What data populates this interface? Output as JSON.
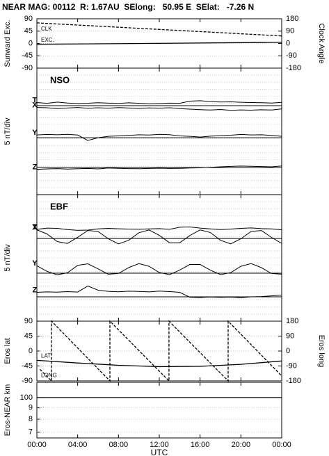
{
  "title": "NEAR MAG: 00112  R: 1.67AU  SElong:   50.95 E  SElat:   -7.26 N",
  "chart_data": [
    {
      "type": "line",
      "ylabel": "Sunward Exc.",
      "y2label": "Clock Angle",
      "xlim": [
        0,
        24
      ],
      "ylim": [
        -90,
        90
      ],
      "yticks": [
        90,
        45,
        0,
        -45,
        -90
      ],
      "y2lim": [
        -180,
        180
      ],
      "y2ticks": [
        180,
        90,
        0,
        -90,
        -180
      ],
      "grid": true,
      "series": [
        {
          "name": "CLK",
          "color": "#000000",
          "style": "dashed",
          "axis": "y2",
          "x": [
            0,
            24
          ],
          "values": [
            150,
            55
          ]
        },
        {
          "name": "EXC.",
          "color": "#000000",
          "style": "solid",
          "x": [
            0,
            24
          ],
          "values": [
            -3,
            4
          ]
        }
      ]
    },
    {
      "type": "line",
      "label": "NSO",
      "ylabel": "5 nT/div",
      "xlim": [
        0,
        24
      ],
      "ylim": [
        0,
        90
      ],
      "grid_step": 5,
      "x": [
        0,
        1,
        2,
        3,
        4,
        5,
        6,
        7,
        8,
        9,
        10,
        11,
        12,
        13,
        14,
        15,
        16,
        17,
        18,
        19,
        20,
        21,
        22,
        23,
        24
      ],
      "reference_lines": [
        63.3,
        40.5,
        19.3
      ],
      "series": [
        {
          "name": "T",
          "color": "#000000",
          "values": [
            65.5,
            65.0,
            65.8,
            65.2,
            64.8,
            65.0,
            65.4,
            65.1,
            64.9,
            65.3,
            65.0,
            64.6,
            64.8,
            65.1,
            65.0,
            66.5,
            66.8,
            66.2,
            65.9,
            66.0,
            65.7,
            65.5,
            65.4,
            65.2,
            65.6
          ]
        },
        {
          "name": "X",
          "color": "#000000",
          "values": [
            62.0,
            61.8,
            61.2,
            61.6,
            62.0,
            61.4,
            61.8,
            61.5,
            61.9,
            61.6,
            61.3,
            61.7,
            61.5,
            61.8,
            61.2,
            60.8,
            60.5,
            60.2,
            60.6,
            60.0,
            60.3,
            60.1,
            60.4,
            60.2,
            61.0
          ]
        },
        {
          "name": "Y",
          "color": "#000000",
          "values": [
            42.5,
            42.8,
            42.6,
            42.9,
            42.4,
            38.5,
            40.5,
            41.5,
            41.8,
            42.2,
            42.6,
            42.4,
            42.9,
            42.7,
            41.8,
            41.5,
            41.0,
            41.6,
            42.0,
            42.3,
            42.8,
            42.5,
            42.6,
            42.2,
            41.5
          ]
        },
        {
          "name": "Z",
          "color": "#000000",
          "values": [
            18.0,
            18.3,
            18.5,
            18.2,
            18.4,
            18.6,
            18.3,
            18.9,
            18.7,
            18.5,
            18.4,
            18.6,
            18.8,
            18.6,
            18.7,
            18.9,
            19.1,
            19.4,
            19.8,
            20.1,
            20.3,
            20.2,
            20.0,
            19.8,
            20.4
          ]
        }
      ]
    },
    {
      "type": "line",
      "label": "EBF",
      "ylabel": "5 nT/div",
      "xlim": [
        0,
        24
      ],
      "ylim": [
        0,
        90
      ],
      "grid_step": 5,
      "x": [
        0,
        1,
        2,
        3,
        4,
        5,
        6,
        7,
        8,
        9,
        10,
        11,
        12,
        13,
        14,
        15,
        16,
        17,
        18,
        19,
        20,
        21,
        22,
        23,
        24
      ],
      "reference_lines": [
        58.8,
        34.1,
        17.3
      ],
      "series": [
        {
          "name": "T",
          "color": "#000000",
          "values": [
            65.3,
            66.2,
            66.0,
            65.2,
            64.6,
            64.8,
            65.6,
            66.0,
            65.7,
            65.5,
            65.4,
            65.6,
            65.8,
            65.3,
            66.8,
            67.0,
            66.2,
            65.6,
            65.2,
            65.5,
            66.0,
            66.3,
            65.8,
            65.6,
            65.0
          ]
        },
        {
          "name": "X",
          "color": "#000000",
          "values": [
            65.0,
            62.0,
            56.6,
            55.3,
            59.7,
            64.5,
            63.8,
            58.6,
            55.0,
            57.5,
            62.9,
            64.9,
            61.0,
            55.8,
            55.8,
            60.9,
            64.9,
            63.1,
            57.5,
            55.0,
            58.6,
            63.8,
            64.5,
            59.6,
            55.3
          ]
        },
        {
          "name": "Y",
          "color": "#000000",
          "values": [
            39.4,
            35.4,
            33.0,
            34.4,
            39.7,
            40.8,
            37.2,
            33.4,
            33.9,
            38.1,
            41.0,
            39.0,
            34.6,
            33.1,
            36.3,
            40.3,
            40.3,
            36.3,
            33.1,
            34.5,
            39.0,
            41.0,
            38.1,
            33.9,
            33.4
          ]
        },
        {
          "name": "Z",
          "color": "#000000",
          "values": [
            20.5,
            20.8,
            20.6,
            21.0,
            20.7,
            25.0,
            22.0,
            21.2,
            20.9,
            21.3,
            21.1,
            20.8,
            21.4,
            21.0,
            20.5,
            17.0,
            16.8,
            17.2,
            16.9,
            17.1,
            16.7,
            17.3,
            17.5,
            18.0,
            18.6
          ]
        }
      ]
    },
    {
      "type": "line",
      "ylabel": "Eros lat",
      "y2label": "Eros long",
      "xlim": [
        0,
        24
      ],
      "ylim": [
        -90,
        90
      ],
      "yticks": [
        90,
        45,
        0,
        -45,
        -90
      ],
      "y2lim": [
        -180,
        180
      ],
      "y2ticks": [
        180,
        90,
        0,
        -90,
        -180
      ],
      "grid": true,
      "series": [
        {
          "name": "LONG",
          "color": "#000000",
          "style": "dashed",
          "axis": "y2",
          "x": [
            0.3,
            1.43,
            1.43,
            7.16,
            7.16,
            12.95,
            12.95,
            18.75,
            18.75,
            24
          ],
          "values": [
            -110,
            -180,
            180,
            -180,
            180,
            -180,
            180,
            -180,
            180,
            -150
          ]
        },
        {
          "name": "LAT",
          "color": "#000000",
          "style": "solid",
          "x": [
            0,
            4,
            8,
            12,
            16,
            20,
            24
          ],
          "values": [
            -28,
            -36,
            -43,
            -47,
            -46,
            -40,
            -30
          ]
        }
      ]
    },
    {
      "type": "line",
      "ylabel": "Eros-NEAR km",
      "xlim": [
        0,
        24
      ],
      "ylim": [
        66,
        117
      ],
      "log": true,
      "grid": true,
      "yticks": [
        100,
        {
          "value": 90,
          "label": "9"
        },
        {
          "value": 80,
          "label": "8"
        },
        {
          "value": 70,
          "label": "7"
        }
      ],
      "xlabel": "UTC",
      "xticks": [
        {
          "value": 0,
          "label": "00:00"
        },
        {
          "value": 4,
          "label": "04:00"
        },
        {
          "value": 8,
          "label": "08:00"
        },
        {
          "value": 12,
          "label": "12:00"
        },
        {
          "value": 16,
          "label": "16:00"
        },
        {
          "value": 20,
          "label": "20:00"
        },
        {
          "value": 24,
          "label": "00:00"
        }
      ],
      "series": [
        {
          "color": "#000000",
          "style": "solid",
          "x": [
            0,
            24
          ],
          "values": [
            100,
            100
          ]
        }
      ]
    }
  ]
}
